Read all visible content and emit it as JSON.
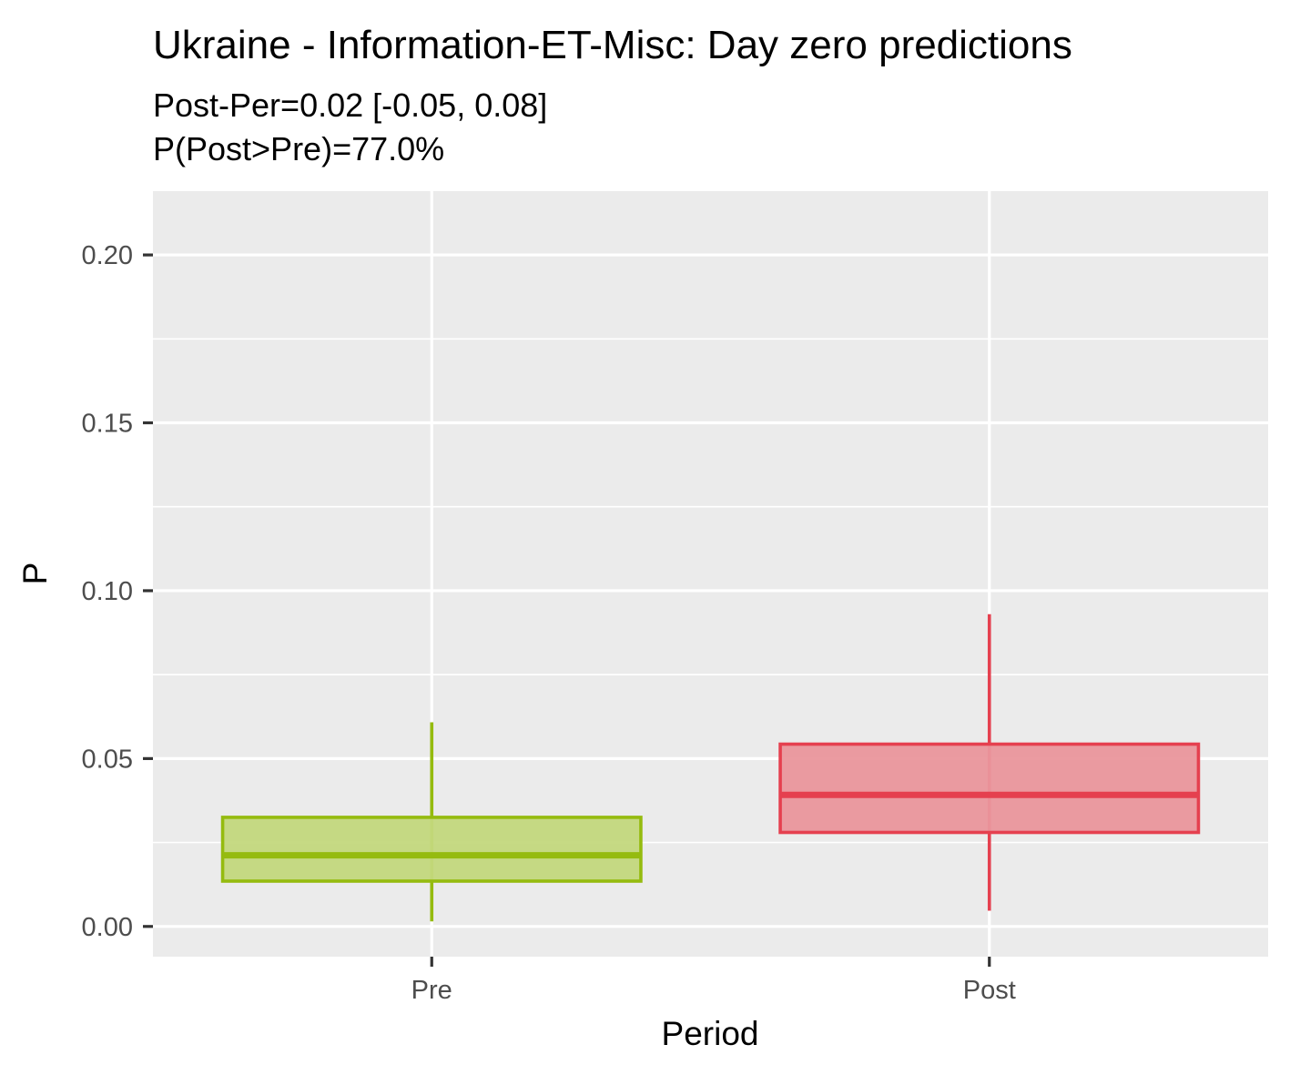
{
  "chart_data": {
    "type": "boxplot",
    "title": "Ukraine - Information-ET-Misc: Day zero predictions",
    "subtitle_lines": [
      "Post-Per=0.02 [-0.05, 0.08]",
      "P(Post>Pre)=77.0%"
    ],
    "xlabel": "Period",
    "ylabel": "P",
    "categories": [
      "Pre",
      "Post"
    ],
    "ylim": [
      -0.009,
      0.219
    ],
    "y_ticks": [
      0.0,
      0.05,
      0.1,
      0.15,
      0.2
    ],
    "y_tick_labels": [
      "0.00",
      "0.05",
      "0.10",
      "0.15",
      "0.20"
    ],
    "grid": true,
    "legend": "none",
    "series": [
      {
        "category": "Pre",
        "whisker_low": 0.0015,
        "q1": 0.0135,
        "median": 0.0212,
        "q3": 0.0325,
        "whisker_high": 0.0608,
        "color": "#95BB0F",
        "fill": "#C3D87D"
      },
      {
        "category": "Post",
        "whisker_low": 0.0047,
        "q1": 0.028,
        "median": 0.0392,
        "q3": 0.0543,
        "whisker_high": 0.093,
        "color": "#E5404F",
        "fill": "#EA969C"
      }
    ],
    "panel_background": "#EBEBEB",
    "grid_color": "#FFFFFF"
  }
}
